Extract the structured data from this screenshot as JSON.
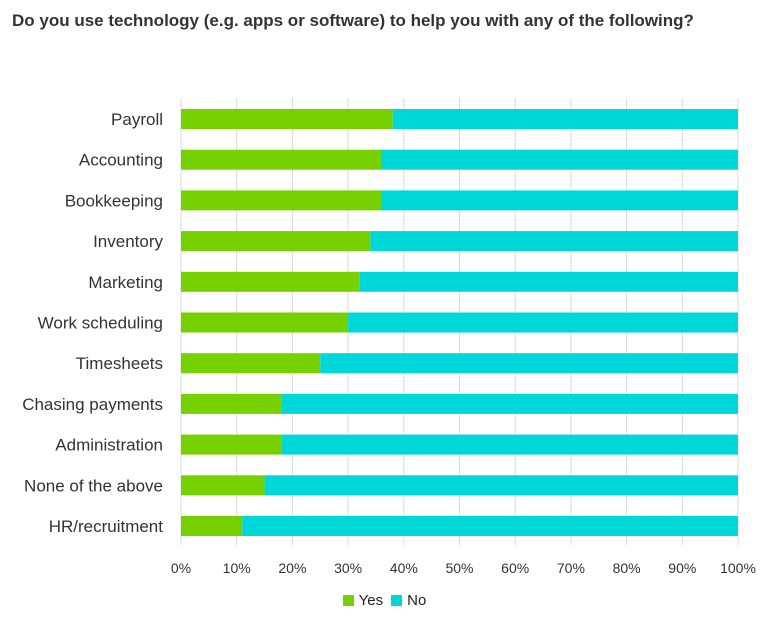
{
  "title": "Do you use technology (e.g. apps or software) to help you with any of the following?",
  "colors": {
    "yes": "#77d100",
    "no": "#00d7d9",
    "grid": "#d9d9d9"
  },
  "chart_data": {
    "type": "bar",
    "orientation": "horizontal",
    "stacked": true,
    "title": "Do you use technology (e.g. apps or software) to help you with any of the following?",
    "categories": [
      "Payroll",
      "Accounting",
      "Bookkeeping",
      "Inventory",
      "Marketing",
      "Work scheduling",
      "Timesheets",
      "Chasing payments",
      "Administration",
      "None of the above",
      "HR/recruitment"
    ],
    "series": [
      {
        "name": "Yes",
        "color": "#77d100",
        "values": [
          38,
          36,
          36,
          34,
          32,
          30,
          25,
          18,
          18,
          15,
          11
        ]
      },
      {
        "name": "No",
        "color": "#00d7d9",
        "values": [
          62,
          64,
          64,
          66,
          68,
          70,
          75,
          82,
          82,
          85,
          89
        ]
      }
    ],
    "xlim": [
      0,
      100
    ],
    "x_ticks": [
      "0%",
      "10%",
      "20%",
      "30%",
      "40%",
      "50%",
      "60%",
      "70%",
      "80%",
      "90%",
      "100%"
    ],
    "grid": true,
    "legend_position": "bottom"
  }
}
